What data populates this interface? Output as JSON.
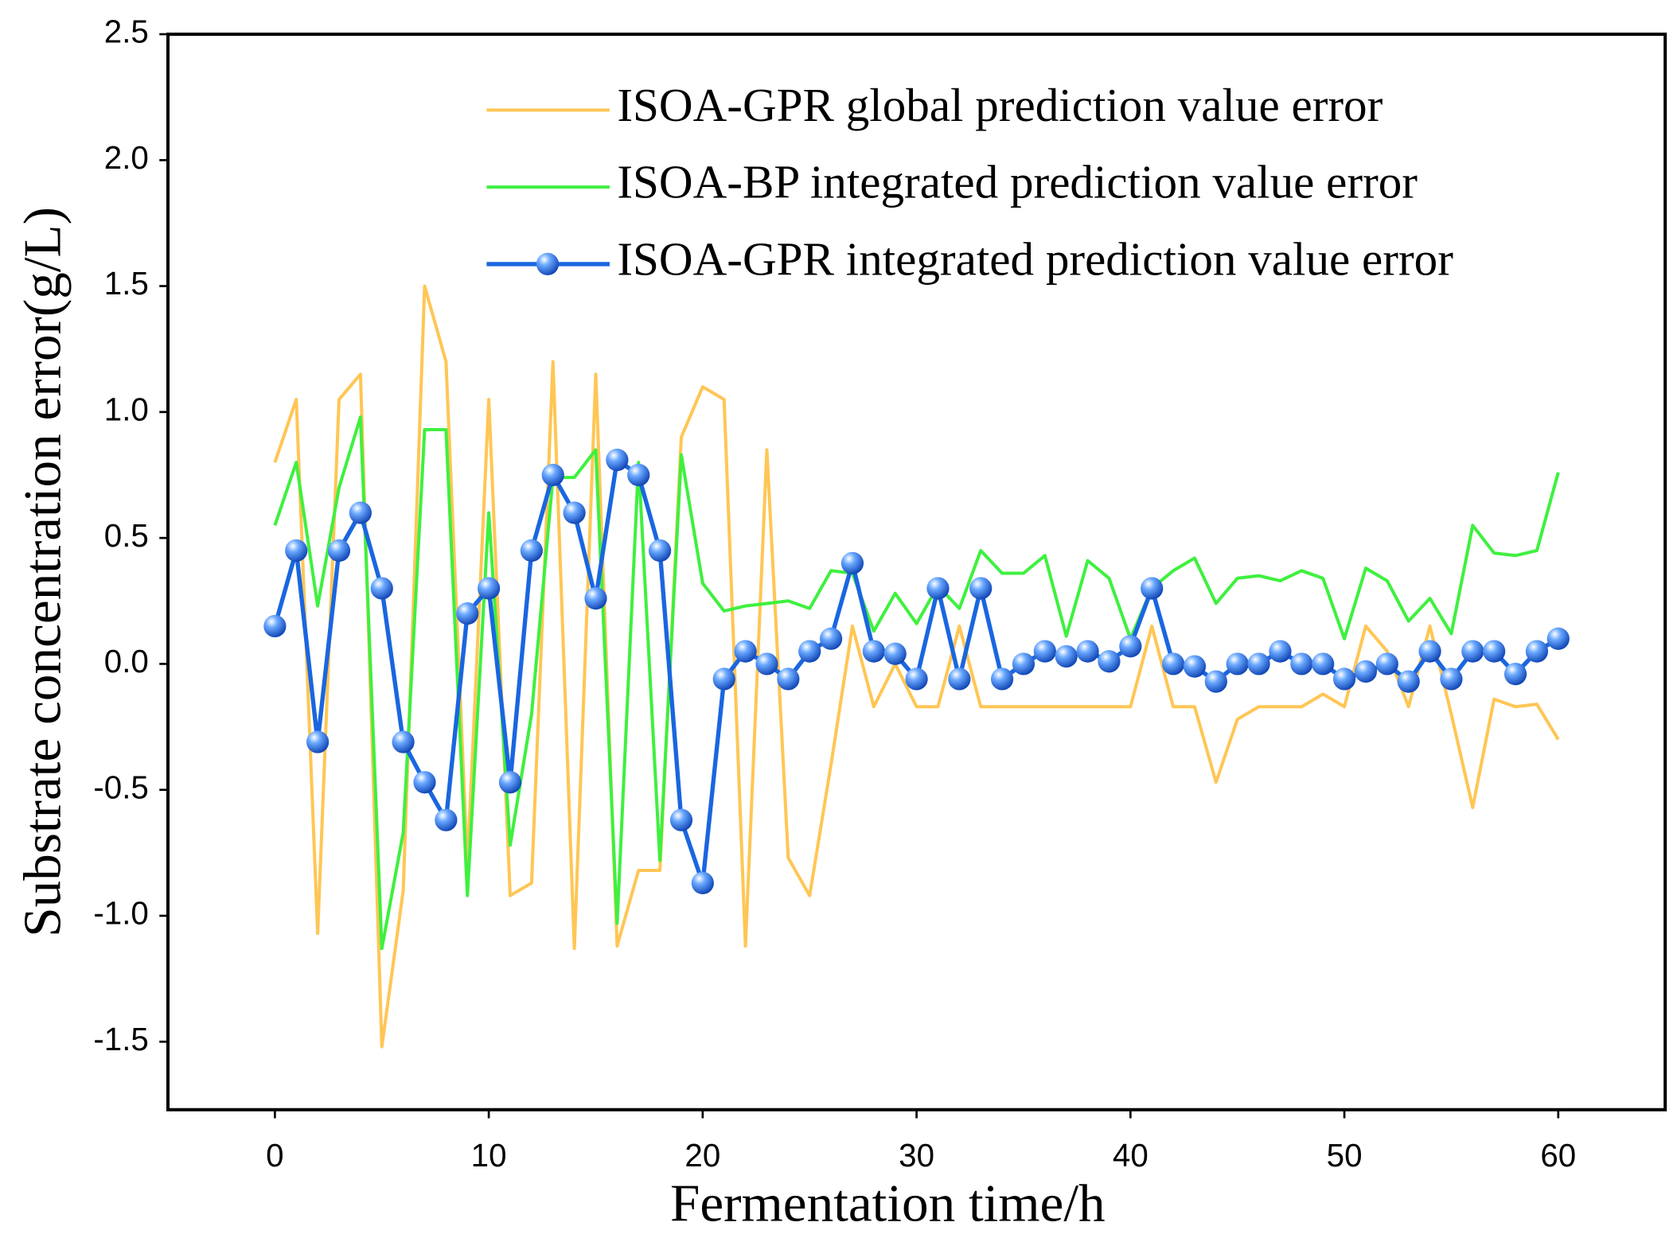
{
  "chart_data": {
    "type": "line",
    "x_label": "Fermentation time/h",
    "y_label": "Substrate concentration error(g/L)",
    "x": [
      0,
      1,
      2,
      3,
      4,
      5,
      6,
      7,
      8,
      9,
      10,
      11,
      12,
      13,
      14,
      15,
      16,
      17,
      18,
      19,
      20,
      21,
      22,
      23,
      24,
      25,
      26,
      27,
      28,
      29,
      30,
      31,
      32,
      33,
      34,
      35,
      36,
      37,
      38,
      39,
      40,
      41,
      42,
      43,
      44,
      45,
      46,
      47,
      48,
      49,
      50,
      51,
      52,
      53,
      54,
      55,
      56,
      57,
      58,
      59,
      60
    ],
    "series": [
      {
        "name": "ISOA-GPR global prediction value error",
        "color": "#ffc655",
        "marker": false,
        "values": [
          0.8,
          1.05,
          -1.07,
          1.05,
          1.15,
          -1.52,
          -0.9,
          1.5,
          1.2,
          -0.8,
          1.05,
          -0.92,
          -0.87,
          1.2,
          -1.13,
          1.15,
          -1.12,
          -0.82,
          -0.82,
          0.9,
          1.1,
          1.05,
          -1.12,
          0.85,
          -0.77,
          -0.92,
          -0.4,
          0.15,
          -0.17,
          0.0,
          -0.17,
          -0.17,
          0.15,
          -0.17,
          -0.17,
          -0.17,
          -0.17,
          -0.17,
          -0.17,
          -0.17,
          -0.17,
          0.15,
          -0.17,
          -0.17,
          -0.47,
          -0.22,
          -0.17,
          -0.17,
          -0.17,
          -0.12,
          -0.17,
          0.15,
          0.05,
          -0.17,
          0.15,
          -0.2,
          -0.57,
          -0.14,
          -0.17,
          -0.16,
          -0.3
        ]
      },
      {
        "name": "ISOA-BP integrated prediction value error",
        "color": "#3ff03f",
        "marker": false,
        "values": [
          0.55,
          0.8,
          0.23,
          0.7,
          0.98,
          -1.13,
          -0.67,
          0.93,
          0.93,
          -0.92,
          0.6,
          -0.72,
          -0.2,
          0.74,
          0.74,
          0.85,
          -1.03,
          0.8,
          -0.78,
          0.83,
          0.32,
          0.21,
          0.23,
          0.24,
          0.25,
          0.22,
          0.37,
          0.36,
          0.13,
          0.28,
          0.16,
          0.31,
          0.22,
          0.45,
          0.36,
          0.36,
          0.43,
          0.11,
          0.41,
          0.34,
          0.1,
          0.3,
          0.37,
          0.42,
          0.24,
          0.34,
          0.35,
          0.33,
          0.37,
          0.34,
          0.1,
          0.38,
          0.33,
          0.17,
          0.26,
          0.12,
          0.55,
          0.44,
          0.43,
          0.45,
          0.76
        ]
      },
      {
        "name": "ISOA-GPR integrated prediction value error",
        "color": "#1a66e0",
        "marker": true,
        "values": [
          0.15,
          0.45,
          -0.31,
          0.45,
          0.6,
          0.3,
          -0.31,
          -0.47,
          -0.62,
          0.2,
          0.3,
          -0.47,
          0.45,
          0.75,
          0.6,
          0.26,
          0.81,
          0.75,
          0.45,
          -0.62,
          -0.87,
          -0.06,
          0.05,
          0.0,
          -0.06,
          0.05,
          0.1,
          0.4,
          0.05,
          0.04,
          -0.06,
          0.3,
          -0.06,
          0.3,
          -0.06,
          0.0,
          0.05,
          0.03,
          0.05,
          0.01,
          0.07,
          0.3,
          0.0,
          -0.01,
          -0.07,
          0.0,
          0.0,
          0.05,
          0.0,
          0.0,
          -0.06,
          -0.03,
          0.0,
          -0.07,
          0.05,
          -0.06,
          0.05,
          0.05,
          -0.04,
          0.05,
          0.1
        ]
      }
    ],
    "xlim": [
      -5,
      65
    ],
    "ylim": [
      -1.77,
      2.5
    ],
    "xticks": [
      0,
      10,
      20,
      30,
      40,
      50,
      60
    ],
    "yticks": [
      2.5,
      {
        "value": 2.0,
        "label": "2.0"
      },
      1.5,
      {
        "value": 1.0,
        "label": "1.0"
      },
      0.5,
      {
        "value": 0.0,
        "label": "0.0"
      },
      -0.5,
      {
        "value": -1.0,
        "label": "-1.0"
      },
      -1.5
    ],
    "grid": false,
    "legend_position": "upper-right"
  }
}
